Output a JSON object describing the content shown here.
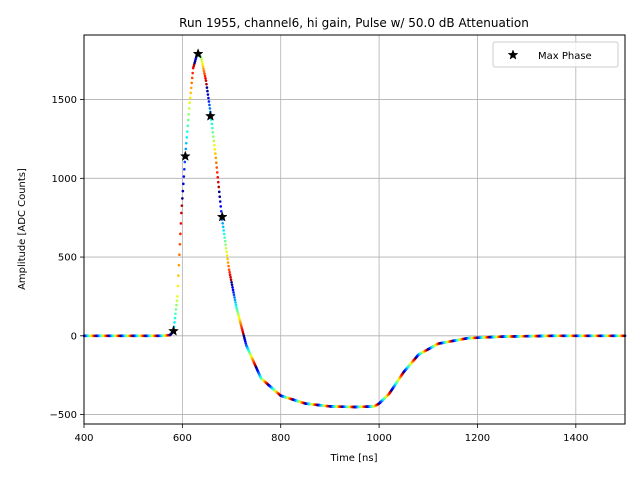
{
  "chart_data": {
    "type": "scatter",
    "title": "Run 1955, channel6, hi gain, Pulse w/ 50.0 dB Attenuation",
    "xlabel": "Time [ns]",
    "ylabel": "Amplitude [ADC Counts]",
    "xlim": [
      400,
      1500
    ],
    "ylim": [
      -560,
      1910
    ],
    "xticks": [
      400,
      600,
      800,
      1000,
      1200,
      1400
    ],
    "yticks": [
      -500,
      0,
      500,
      1000,
      1500
    ],
    "xtick_labels": [
      "400",
      "600",
      "800",
      "1000",
      "1200",
      "1400"
    ],
    "ytick_labels": [
      "−500",
      "0",
      "500",
      "1000",
      "1500"
    ],
    "grid": true,
    "legend_position": "top-right",
    "colormap": "jet",
    "color_period_ns": 25,
    "pulse_curve": [
      [
        400,
        0
      ],
      [
        560,
        0
      ],
      [
        575,
        5
      ],
      [
        582,
        30
      ],
      [
        590,
        250
      ],
      [
        598,
        780
      ],
      [
        606,
        1150
      ],
      [
        615,
        1480
      ],
      [
        622,
        1700
      ],
      [
        630,
        1790
      ],
      [
        638,
        1770
      ],
      [
        648,
        1620
      ],
      [
        658,
        1400
      ],
      [
        668,
        1130
      ],
      [
        680,
        760
      ],
      [
        695,
        420
      ],
      [
        710,
        180
      ],
      [
        730,
        -60
      ],
      [
        760,
        -270
      ],
      [
        800,
        -380
      ],
      [
        850,
        -430
      ],
      [
        900,
        -448
      ],
      [
        950,
        -452
      ],
      [
        990,
        -448
      ],
      [
        1000,
        -430
      ],
      [
        1020,
        -370
      ],
      [
        1050,
        -230
      ],
      [
        1080,
        -120
      ],
      [
        1120,
        -50
      ],
      [
        1180,
        -15
      ],
      [
        1250,
        -5
      ],
      [
        1350,
        0
      ],
      [
        1500,
        0
      ]
    ],
    "series": [
      {
        "name": "Max Phase",
        "marker": "star",
        "color": "#000000",
        "points": [
          [
            582,
            30
          ],
          [
            606,
            1140
          ],
          [
            632,
            1790
          ],
          [
            657,
            1395
          ],
          [
            681,
            755
          ]
        ]
      }
    ]
  }
}
